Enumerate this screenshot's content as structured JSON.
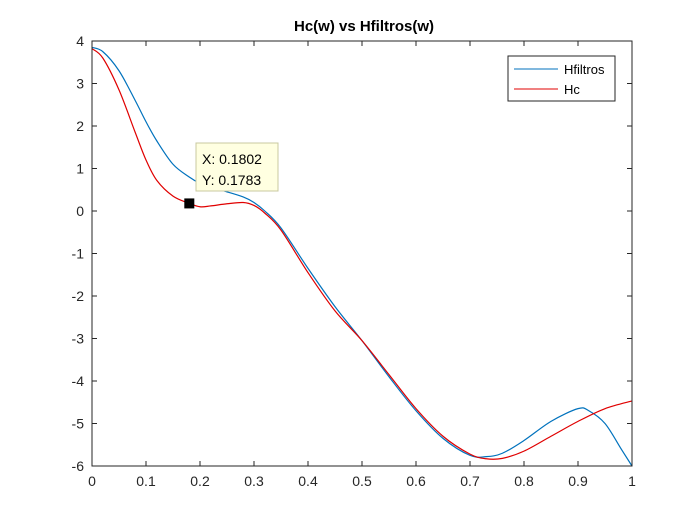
{
  "chart_data": {
    "type": "line",
    "title": "Hc(w) vs Hfiltros(w)",
    "xlabel": "",
    "ylabel": "",
    "xlim": [
      0,
      1
    ],
    "ylim": [
      -6,
      4
    ],
    "xticks": [
      0,
      0.1,
      0.2,
      0.3,
      0.4,
      0.5,
      0.6,
      0.7,
      0.8,
      0.9,
      1
    ],
    "xtick_labels": [
      "0",
      "0.1",
      "0.2",
      "0.3",
      "0.4",
      "0.5",
      "0.6",
      "0.7",
      "0.8",
      "0.9",
      "1"
    ],
    "yticks": [
      4,
      3,
      2,
      1,
      0,
      -1,
      -2,
      -3,
      -4,
      -5,
      -6
    ],
    "ytick_labels": [
      "4",
      "3",
      "2",
      "1",
      "0",
      "-1",
      "-2",
      "-3",
      "-4",
      "-5",
      "-6"
    ],
    "grid": false,
    "legend_position": "top-right",
    "series": [
      {
        "name": "Hfiltros",
        "color": "#0072BD",
        "x": [
          0,
          0.02,
          0.05,
          0.08,
          0.1,
          0.12,
          0.15,
          0.18,
          0.2,
          0.22,
          0.25,
          0.28,
          0.3,
          0.32,
          0.35,
          0.4,
          0.45,
          0.5,
          0.55,
          0.6,
          0.65,
          0.7,
          0.73,
          0.76,
          0.8,
          0.85,
          0.9,
          0.92,
          0.95,
          0.98,
          1
        ],
        "y": [
          3.85,
          3.75,
          3.3,
          2.6,
          2.1,
          1.65,
          1.1,
          0.8,
          0.65,
          0.55,
          0.45,
          0.33,
          0.2,
          0.0,
          -0.4,
          -1.35,
          -2.25,
          -3.05,
          -3.9,
          -4.7,
          -5.35,
          -5.75,
          -5.78,
          -5.7,
          -5.4,
          -4.95,
          -4.65,
          -4.7,
          -5.0,
          -5.6,
          -6.0
        ]
      },
      {
        "name": "Hc",
        "color": "#E00000",
        "x": [
          0,
          0.02,
          0.05,
          0.08,
          0.1,
          0.12,
          0.15,
          0.18,
          0.2,
          0.22,
          0.25,
          0.28,
          0.3,
          0.32,
          0.35,
          0.4,
          0.45,
          0.5,
          0.55,
          0.6,
          0.65,
          0.7,
          0.73,
          0.76,
          0.8,
          0.85,
          0.9,
          0.95,
          1
        ],
        "y": [
          3.82,
          3.6,
          2.85,
          1.85,
          1.2,
          0.72,
          0.35,
          0.18,
          0.1,
          0.12,
          0.17,
          0.2,
          0.13,
          -0.05,
          -0.45,
          -1.45,
          -2.35,
          -3.05,
          -3.85,
          -4.65,
          -5.3,
          -5.72,
          -5.83,
          -5.82,
          -5.65,
          -5.3,
          -4.95,
          -4.65,
          -4.47
        ]
      }
    ],
    "datatip": {
      "series": "Hc",
      "x": 0.1802,
      "y": 0.1783,
      "line1": "X: 0.1802",
      "line2": "Y: 0.1783"
    }
  }
}
